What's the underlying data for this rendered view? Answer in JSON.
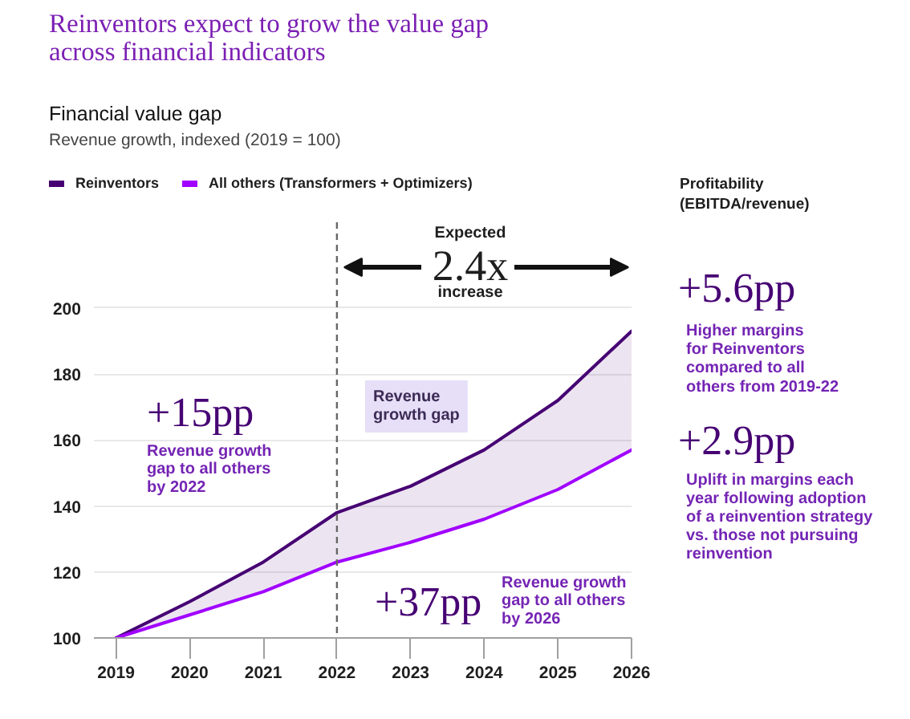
{
  "chart_data": {
    "type": "line",
    "title": "Reinventors expect to grow the value gap\nacross financial indicators",
    "subtitle": "Financial value gap",
    "ylabel": "Revenue growth, indexed (2019 = 100)",
    "x": [
      2019,
      2020,
      2021,
      2022,
      2023,
      2024,
      2025,
      2026
    ],
    "series": [
      {
        "name": "Reinventors",
        "color": "#460073",
        "values": [
          100,
          111,
          123,
          138,
          146,
          157,
          172,
          193
        ],
        "lower": [
          100,
          107,
          114,
          123,
          129,
          136,
          145,
          157
        ],
        "upper": [
          100,
          111,
          123,
          138,
          146,
          157,
          172,
          193
        ]
      },
      {
        "name": "All others (Transformers + Optimizers)",
        "color": "#a100ff",
        "values": [
          100,
          107,
          114,
          123,
          129,
          136,
          145,
          157
        ]
      }
    ],
    "xlim": [
      2018.7,
      2026
    ],
    "ylim": [
      100,
      226
    ],
    "xticks": [
      2019,
      2020,
      2021,
      2022,
      2023,
      2024,
      2025,
      2026
    ],
    "yticks": [
      100,
      120,
      140,
      160,
      180,
      200
    ],
    "grid": "y",
    "legend": "top left",
    "ref_lines": [
      {
        "axis": "x",
        "value": 2022,
        "color": "#666666",
        "line_style": "dashed"
      }
    ],
    "annotations": [
      "Expected",
      "2.4x",
      "increase",
      "Revenue\ngrowth gap",
      "+15pp",
      "Revenue growth\ngap to all others\nby 2022",
      "+37pp",
      "Revenue growth\ngap to all others\nby 2026",
      "Profitability\n(EBITDA/revenue)",
      "+5.6pp",
      "Higher margins\nfor Reinventors\ncompared to all\nothers from 2019-22",
      "+2.9pp",
      "Uplift in margins each\nyear following adoption\nof a reinvention strategy\nvs. those not pursuing\nreinvention"
    ]
  }
}
